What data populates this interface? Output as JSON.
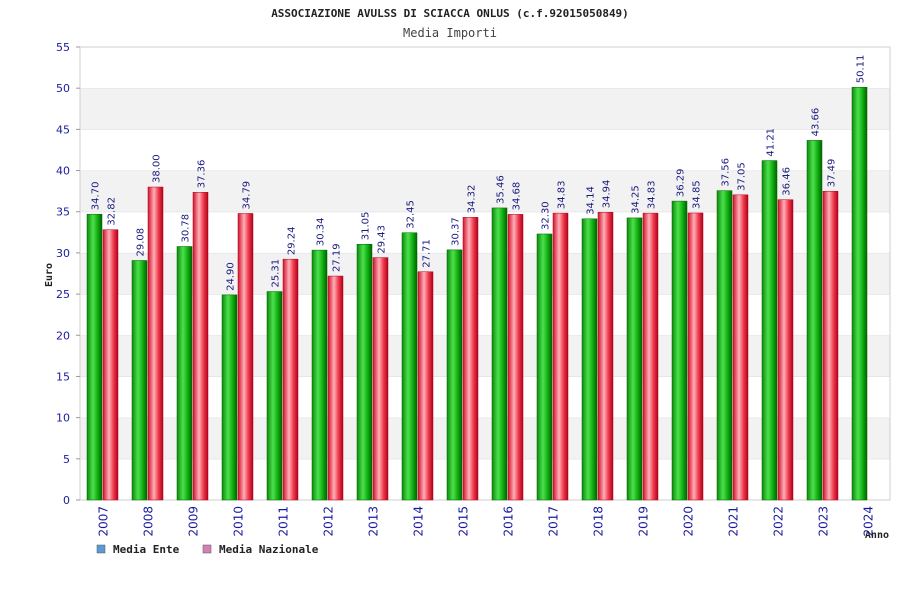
{
  "chart_data": {
    "type": "bar",
    "title": "ASSOCIAZIONE AVULSS DI SCIACCA ONLUS (c.f.92015050849)",
    "subtitle": "Media Importi",
    "xlabel": "Anno",
    "ylabel": "Euro",
    "ylim": [
      0,
      55
    ],
    "yticks": [
      "0",
      "5",
      "10",
      "15",
      "20",
      "25",
      "30",
      "35",
      "40",
      "45",
      "50",
      "55"
    ],
    "categories": [
      "2007",
      "2008",
      "2009",
      "2010",
      "2011",
      "2012",
      "2013",
      "2014",
      "2015",
      "2016",
      "2017",
      "2018",
      "2019",
      "2020",
      "2021",
      "2022",
      "2023",
      "2024"
    ],
    "series": [
      {
        "name": "Media Ente",
        "legend_color": "#5b9bd5",
        "values": [
          34.7,
          29.08,
          30.78,
          24.9,
          25.31,
          30.34,
          31.05,
          32.45,
          30.37,
          35.46,
          32.3,
          34.14,
          34.25,
          36.29,
          37.56,
          41.21,
          43.66,
          50.11
        ],
        "labels": [
          "34.70",
          "29.08",
          "30.78",
          "24.90",
          "25.31",
          "30.34",
          "31.05",
          "32.45",
          "30.37",
          "35.46",
          "32.30",
          "34.14",
          "34.25",
          "36.29",
          "37.56",
          "41.21",
          "43.66",
          "50.11"
        ]
      },
      {
        "name": "Media Nazionale",
        "legend_color": "#d47fb6",
        "values": [
          32.82,
          38.0,
          37.36,
          34.79,
          29.24,
          27.19,
          29.43,
          27.71,
          34.32,
          34.68,
          34.83,
          34.94,
          34.83,
          34.85,
          37.05,
          36.46,
          37.49,
          null
        ],
        "labels": [
          "32.82",
          "38.00",
          "37.36",
          "34.79",
          "29.24",
          "27.19",
          "29.43",
          "27.71",
          "34.32",
          "34.68",
          "34.83",
          "34.94",
          "34.83",
          "34.85",
          "37.05",
          "36.46",
          "37.49",
          ""
        ]
      }
    ],
    "grid": true,
    "legend_position": "bottom-left"
  }
}
